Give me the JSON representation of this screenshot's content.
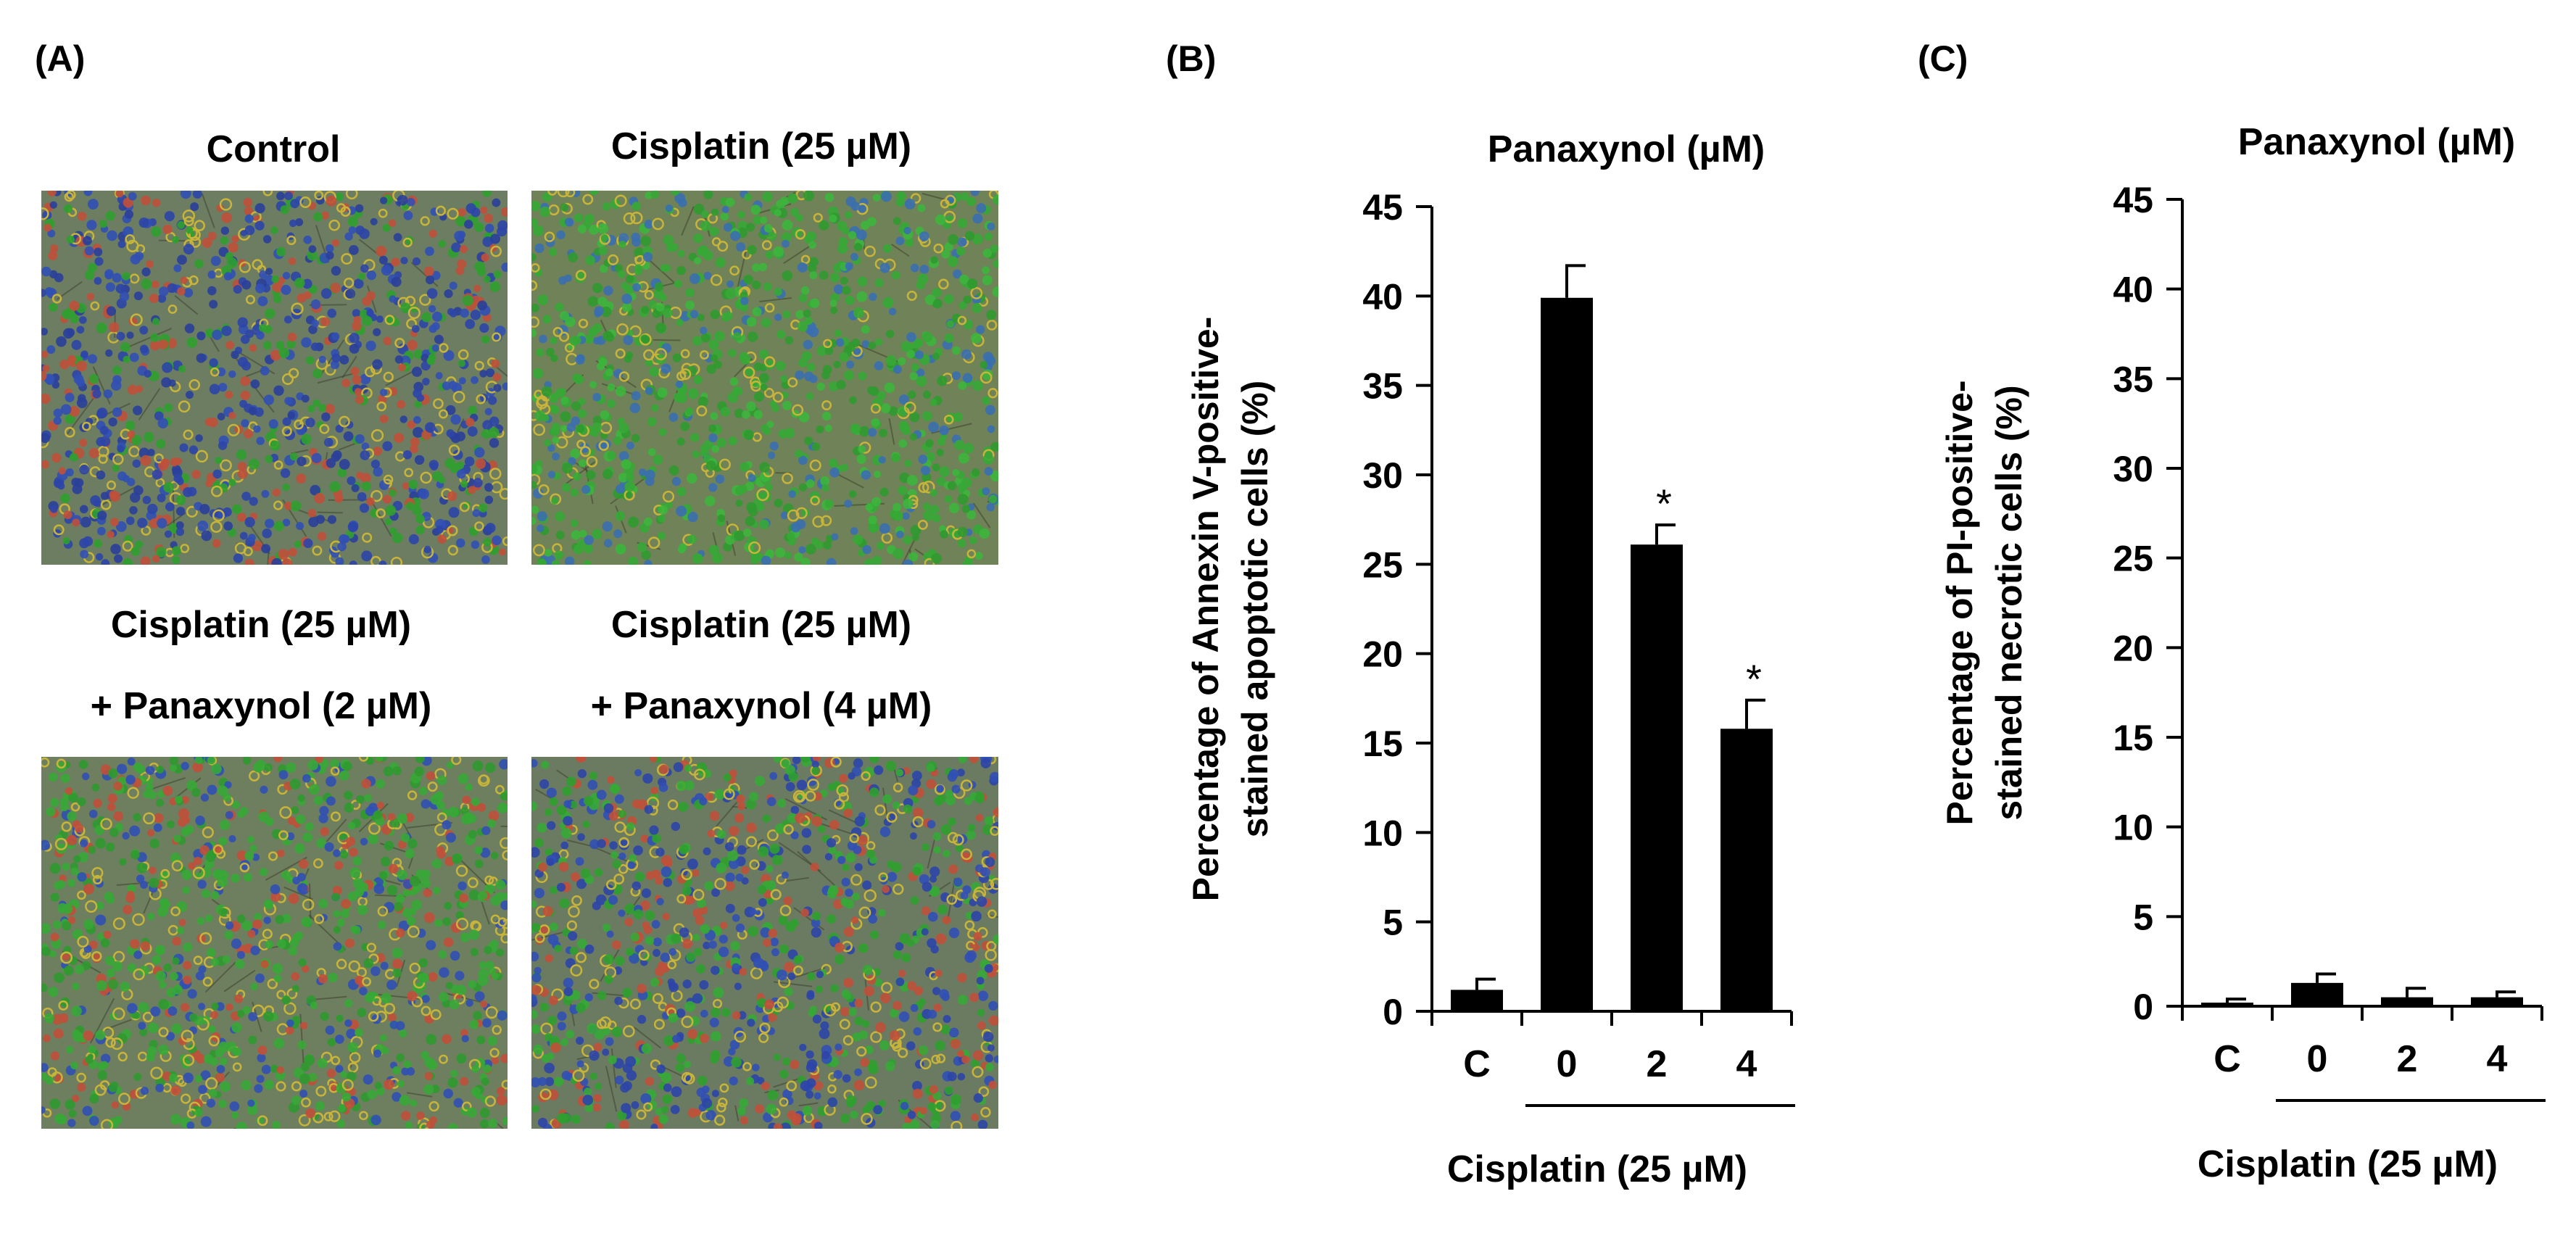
{
  "panels": {
    "a": {
      "letter": "(A)",
      "images": [
        {
          "label": "Control",
          "label2": "",
          "palette": [
            "#2e45a8",
            "#3150b4",
            "#2a3f9a",
            "#2fa02f",
            "#c8b43a",
            "#c0503a"
          ],
          "bg": "#6c7d62"
        },
        {
          "label": "Cisplatin (25 µM)",
          "label2": "",
          "palette": [
            "#36a836",
            "#2f9a2f",
            "#3cb53c",
            "#c8b43a",
            "#36a836",
            "#3a6fb0"
          ],
          "bg": "#6f8258"
        },
        {
          "label": "Cisplatin (25 µM)",
          "label2": "+ Panaxynol (2 µM)",
          "palette": [
            "#36a836",
            "#2f9a2f",
            "#3150b4",
            "#c8b43a",
            "#c0503a",
            "#36a836"
          ],
          "bg": "#6d7f5e"
        },
        {
          "label": "Cisplatin (25 µM)",
          "label2": "+ Panaxynol (4 µM)",
          "palette": [
            "#2e45a8",
            "#3150b4",
            "#36a836",
            "#2fa02f",
            "#c8b43a",
            "#c0503a"
          ],
          "bg": "#6b7b62"
        }
      ]
    },
    "b": {
      "letter": "(B)"
    },
    "c": {
      "letter": "(C)"
    }
  },
  "chart_data": [
    {
      "type": "bar",
      "panel": "B",
      "title": "Panaxynol  (µM)",
      "ylabel": "Percentage of Annexin V-positive-",
      "ylabel2": "stained apoptotic cells (%)",
      "xlabel": "Cisplatin (25 µM)",
      "categories": [
        "C",
        "0",
        "2",
        "4"
      ],
      "values": [
        1.2,
        39.9,
        26.1,
        15.8
      ],
      "errors": [
        0.6,
        1.8,
        1.1,
        1.6
      ],
      "significance": [
        "",
        "",
        "*",
        "*"
      ],
      "ylim": [
        0,
        45
      ],
      "yticks": [
        "0",
        "5",
        "10",
        "15",
        "20",
        "25",
        "30",
        "35",
        "40",
        "45"
      ],
      "bar_color": "#000000"
    },
    {
      "type": "bar",
      "panel": "C",
      "title": "Panaxynol  (µM)",
      "ylabel": "Percentage of PI-positive-",
      "ylabel2": "stained necrotic cells (%)",
      "xlabel": "Cisplatin (25 µM)",
      "categories": [
        "C",
        "0",
        "2",
        "4"
      ],
      "values": [
        0.2,
        1.3,
        0.5,
        0.5
      ],
      "errors": [
        0.2,
        0.5,
        0.5,
        0.3
      ],
      "significance": [
        "",
        "",
        "",
        ""
      ],
      "ylim": [
        0,
        45
      ],
      "yticks": [
        "0",
        "5",
        "10",
        "15",
        "20",
        "25",
        "30",
        "35",
        "40",
        "45"
      ],
      "bar_color": "#000000"
    }
  ]
}
